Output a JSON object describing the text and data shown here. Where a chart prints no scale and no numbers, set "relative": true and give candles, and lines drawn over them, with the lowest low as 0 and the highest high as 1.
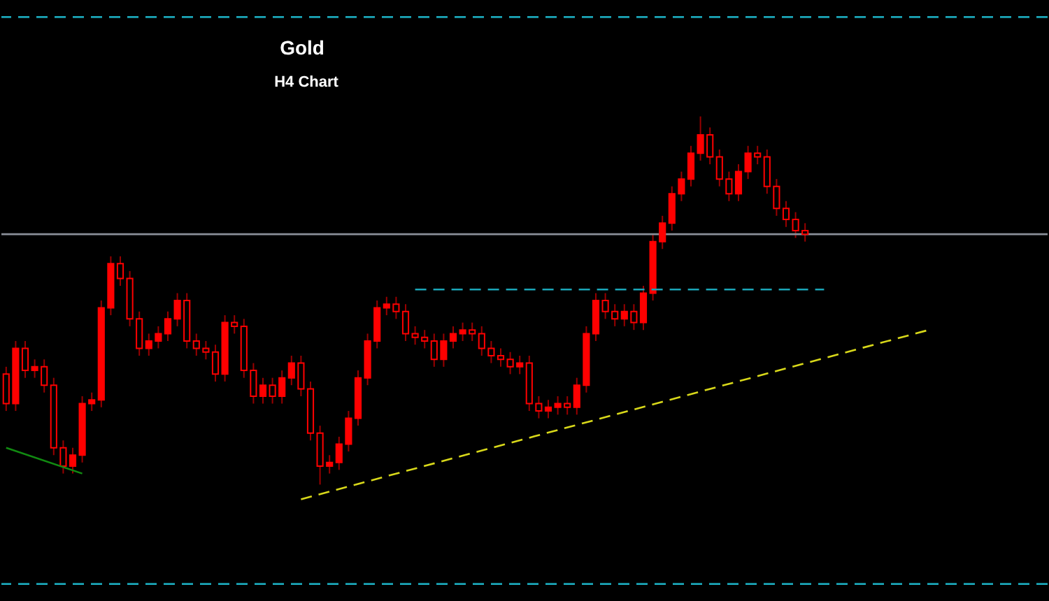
{
  "chart_data": {
    "type": "candlestick",
    "title": "Gold",
    "subtitle": "H4 Chart",
    "relative": true,
    "color": "#ff0000",
    "categories": [
      null,
      null,
      null,
      null,
      null,
      null,
      null,
      null,
      null,
      null,
      null,
      null,
      null,
      null,
      null,
      null,
      null,
      null,
      null,
      null,
      null,
      null,
      null,
      null,
      null,
      null,
      null,
      null,
      null,
      null,
      null,
      null,
      null,
      null,
      null,
      null,
      null,
      null,
      null,
      null,
      null,
      null,
      null,
      null,
      null,
      null,
      null,
      null,
      null,
      null,
      null,
      null,
      null,
      null,
      null,
      null,
      null,
      null,
      null,
      null,
      null,
      null,
      null,
      null,
      null,
      null,
      null,
      null,
      null,
      null,
      null,
      null,
      null,
      null,
      null,
      null,
      null,
      null,
      null,
      null,
      null,
      null,
      null,
      null,
      null,
      null,
      null,
      null,
      null,
      null,
      null,
      null,
      null,
      null,
      null,
      null,
      null,
      null,
      null,
      null,
      null,
      null,
      null,
      null,
      null,
      null,
      null,
      null,
      null,
      null
    ],
    "ohlc": [
      [
        0.3,
        0.32,
        0.2,
        0.22
      ],
      [
        0.22,
        0.39,
        0.2,
        0.37
      ],
      [
        0.37,
        0.39,
        0.29,
        0.31
      ],
      [
        0.31,
        0.34,
        0.29,
        0.32
      ],
      [
        0.32,
        0.34,
        0.25,
        0.27
      ],
      [
        0.27,
        0.29,
        0.08,
        0.1
      ],
      [
        0.1,
        0.12,
        0.03,
        0.05
      ],
      [
        0.05,
        0.1,
        0.03,
        0.08
      ],
      [
        0.08,
        0.24,
        0.06,
        0.22
      ],
      [
        0.22,
        0.25,
        0.2,
        0.23
      ],
      [
        0.23,
        0.5,
        0.21,
        0.48
      ],
      [
        0.48,
        0.62,
        0.46,
        0.6
      ],
      [
        0.6,
        0.62,
        0.54,
        0.56
      ],
      [
        0.56,
        0.58,
        0.43,
        0.45
      ],
      [
        0.45,
        0.47,
        0.35,
        0.37
      ],
      [
        0.37,
        0.41,
        0.35,
        0.39
      ],
      [
        0.39,
        0.43,
        0.37,
        0.41
      ],
      [
        0.41,
        0.47,
        0.39,
        0.45
      ],
      [
        0.45,
        0.52,
        0.43,
        0.5
      ],
      [
        0.5,
        0.52,
        0.37,
        0.39
      ],
      [
        0.39,
        0.41,
        0.35,
        0.37
      ],
      [
        0.37,
        0.39,
        0.34,
        0.36
      ],
      [
        0.36,
        0.38,
        0.28,
        0.3
      ],
      [
        0.3,
        0.46,
        0.28,
        0.44
      ],
      [
        0.44,
        0.46,
        0.41,
        0.43
      ],
      [
        0.43,
        0.45,
        0.29,
        0.31
      ],
      [
        0.31,
        0.33,
        0.22,
        0.24
      ],
      [
        0.24,
        0.29,
        0.22,
        0.27
      ],
      [
        0.27,
        0.29,
        0.22,
        0.24
      ],
      [
        0.24,
        0.31,
        0.22,
        0.29
      ],
      [
        0.29,
        0.35,
        0.27,
        0.33
      ],
      [
        0.33,
        0.35,
        0.24,
        0.26
      ],
      [
        0.26,
        0.28,
        0.12,
        0.14
      ],
      [
        0.14,
        0.16,
        0,
        0.05
      ],
      [
        0.05,
        0.08,
        0.03,
        0.06
      ],
      [
        0.06,
        0.13,
        0.04,
        0.11
      ],
      [
        0.11,
        0.2,
        0.09,
        0.18
      ],
      [
        0.18,
        0.31,
        0.16,
        0.29
      ],
      [
        0.29,
        0.41,
        0.27,
        0.39
      ],
      [
        0.39,
        0.5,
        0.37,
        0.48
      ],
      [
        0.48,
        0.51,
        0.46,
        0.49
      ],
      [
        0.49,
        0.51,
        0.45,
        0.47
      ],
      [
        0.47,
        0.49,
        0.39,
        0.41
      ],
      [
        0.41,
        0.43,
        0.38,
        0.4
      ],
      [
        0.4,
        0.42,
        0.37,
        0.39
      ],
      [
        0.39,
        0.41,
        0.32,
        0.34
      ],
      [
        0.34,
        0.41,
        0.32,
        0.39
      ],
      [
        0.39,
        0.43,
        0.37,
        0.41
      ],
      [
        0.41,
        0.44,
        0.39,
        0.42
      ],
      [
        0.42,
        0.44,
        0.39,
        0.41
      ],
      [
        0.41,
        0.43,
        0.35,
        0.37
      ],
      [
        0.37,
        0.39,
        0.33,
        0.35
      ],
      [
        0.35,
        0.37,
        0.32,
        0.34
      ],
      [
        0.34,
        0.36,
        0.3,
        0.32
      ],
      [
        0.32,
        0.35,
        0.3,
        0.33
      ],
      [
        0.33,
        0.35,
        0.2,
        0.22
      ],
      [
        0.22,
        0.24,
        0.18,
        0.2
      ],
      [
        0.2,
        0.23,
        0.18,
        0.21
      ],
      [
        0.21,
        0.24,
        0.19,
        0.22
      ],
      [
        0.22,
        0.24,
        0.19,
        0.21
      ],
      [
        0.21,
        0.29,
        0.19,
        0.27
      ],
      [
        0.27,
        0.43,
        0.25,
        0.41
      ],
      [
        0.41,
        0.52,
        0.39,
        0.5
      ],
      [
        0.5,
        0.52,
        0.45,
        0.47
      ],
      [
        0.47,
        0.49,
        0.43,
        0.45
      ],
      [
        0.45,
        0.49,
        0.43,
        0.47
      ],
      [
        0.47,
        0.49,
        0.42,
        0.44
      ],
      [
        0.44,
        0.54,
        0.42,
        0.52
      ],
      [
        0.52,
        0.68,
        0.5,
        0.66
      ],
      [
        0.66,
        0.73,
        0.64,
        0.71
      ],
      [
        0.71,
        0.81,
        0.69,
        0.79
      ],
      [
        0.79,
        0.85,
        0.77,
        0.83
      ],
      [
        0.83,
        0.92,
        0.81,
        0.9
      ],
      [
        0.9,
        1,
        0.88,
        0.95
      ],
      [
        0.95,
        0.97,
        0.87,
        0.89
      ],
      [
        0.89,
        0.91,
        0.81,
        0.83
      ],
      [
        0.83,
        0.85,
        0.77,
        0.79
      ],
      [
        0.79,
        0.87,
        0.77,
        0.85
      ],
      [
        0.85,
        0.92,
        0.83,
        0.9
      ],
      [
        0.9,
        0.92,
        0.87,
        0.89
      ],
      [
        0.89,
        0.91,
        0.79,
        0.81
      ],
      [
        0.81,
        0.83,
        0.73,
        0.75
      ],
      [
        0.75,
        0.77,
        0.7,
        0.72
      ],
      [
        0.72,
        0.74,
        0.67,
        0.69
      ],
      [
        0.69,
        0.71,
        0.66,
        0.68
      ],
      null,
      null,
      null,
      null,
      null,
      null,
      null,
      null,
      null,
      null,
      null,
      null,
      null,
      null,
      null,
      null,
      null,
      null,
      null,
      null,
      null,
      null,
      null,
      null,
      null
    ],
    "series": [
      {
        "type": "line",
        "color": "#d8d81a",
        "line_style": "dashed",
        "values": [
          null,
          null,
          null,
          null,
          null,
          null,
          null,
          null,
          null,
          null,
          null,
          null,
          null,
          null,
          null,
          null,
          null,
          null,
          null,
          null,
          null,
          null,
          null,
          null,
          null,
          null,
          null,
          null,
          null,
          null,
          null,
          -0.04,
          null,
          null,
          null,
          null,
          null,
          null,
          null,
          null,
          null,
          null,
          null,
          null,
          null,
          null,
          null,
          null,
          null,
          null,
          null,
          null,
          null,
          null,
          null,
          null,
          null,
          null,
          null,
          null,
          null,
          null,
          null,
          null,
          null,
          null,
          null,
          null,
          null,
          null,
          null,
          null,
          null,
          null,
          null,
          null,
          null,
          null,
          null,
          null,
          null,
          null,
          null,
          null,
          null,
          null,
          null,
          null,
          null,
          null,
          null,
          null,
          null,
          null,
          null,
          null,
          null,
          0.42,
          null,
          null,
          null,
          null,
          null,
          null,
          null,
          null,
          null,
          null,
          null,
          null
        ]
      },
      {
        "type": "line",
        "color": "#1ba6b8",
        "line_style": "dashed",
        "values": [
          null,
          null,
          null,
          null,
          null,
          null,
          null,
          null,
          null,
          null,
          null,
          null,
          null,
          null,
          null,
          null,
          null,
          null,
          null,
          null,
          null,
          null,
          null,
          null,
          null,
          null,
          null,
          null,
          null,
          null,
          null,
          null,
          null,
          null,
          null,
          null,
          null,
          null,
          null,
          null,
          null,
          null,
          null,
          0.53,
          null,
          null,
          null,
          null,
          null,
          null,
          null,
          null,
          null,
          null,
          null,
          null,
          null,
          null,
          null,
          null,
          null,
          null,
          null,
          null,
          null,
          null,
          null,
          null,
          null,
          null,
          null,
          null,
          null,
          null,
          null,
          null,
          null,
          null,
          null,
          null,
          null,
          null,
          null,
          null,
          null,
          null,
          0.53,
          null,
          null,
          null,
          null,
          null,
          null,
          null,
          null,
          null,
          null,
          null,
          null,
          null,
          null,
          null,
          null,
          null,
          null,
          null,
          null,
          null,
          null,
          null
        ]
      },
      {
        "type": "line",
        "color": "#118a11",
        "line_style": "solid",
        "values": [
          0.1,
          null,
          null,
          null,
          null,
          null,
          null,
          null,
          0.03,
          null,
          null,
          null,
          null,
          null,
          null,
          null,
          null,
          null,
          null,
          null,
          null,
          null,
          null,
          null,
          null,
          null,
          null,
          null,
          null,
          null,
          null,
          null,
          null,
          null,
          null,
          null,
          null,
          null,
          null,
          null,
          null,
          null,
          null,
          null,
          null,
          null,
          null,
          null,
          null,
          null,
          null,
          null,
          null,
          null,
          null,
          null,
          null,
          null,
          null,
          null,
          null,
          null,
          null,
          null,
          null,
          null,
          null,
          null,
          null,
          null,
          null,
          null,
          null,
          null,
          null,
          null,
          null,
          null,
          null,
          null,
          null,
          null,
          null,
          null,
          null,
          null,
          null,
          null,
          null,
          null,
          null,
          null,
          null,
          null,
          null,
          null,
          null,
          null,
          null,
          null,
          null,
          null,
          null,
          null,
          null,
          null,
          null,
          null,
          null,
          null
        ]
      }
    ],
    "ref_lines": [
      {
        "axis": "y",
        "value": 1.27,
        "color": "#1ba6b8",
        "line_style": "dashed"
      },
      {
        "axis": "y",
        "value": -0.27,
        "color": "#1ba6b8",
        "line_style": "dashed"
      },
      {
        "axis": "y",
        "value": 0.68,
        "color": "#8a8f99",
        "line_style": "solid"
      }
    ]
  }
}
